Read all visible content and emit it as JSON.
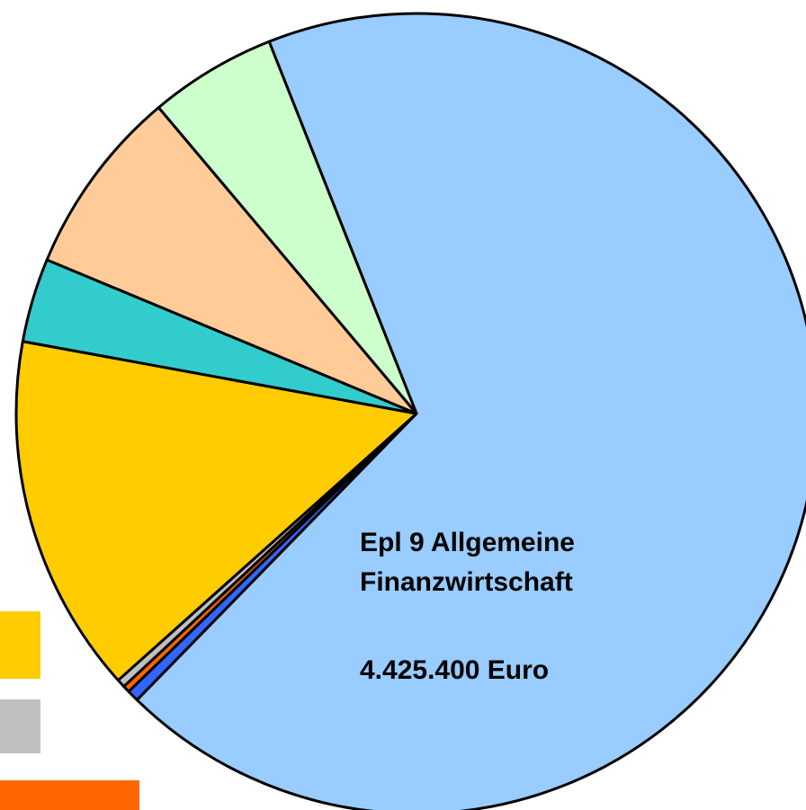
{
  "chart_data": {
    "type": "pie",
    "categories": [
      "Epl 9 Allgemeine Finanzwirtschaft",
      null,
      null,
      null,
      null,
      null,
      null,
      null
    ],
    "values": [
      4425400,
      30600,
      18000,
      21600,
      939600,
      219600,
      491400,
      333000
    ],
    "value_labels": [
      "4.425.400 Euro",
      null,
      null,
      null,
      null,
      null,
      null,
      null
    ],
    "colors": [
      "#99ccff",
      "#3366ff",
      "#ff6600",
      "#c0c0c0",
      "#ffcc00",
      "#33cccc",
      "#ffcc99",
      "#ccffcc"
    ],
    "start_angle": 338.4,
    "direction": "clockwise"
  }
}
